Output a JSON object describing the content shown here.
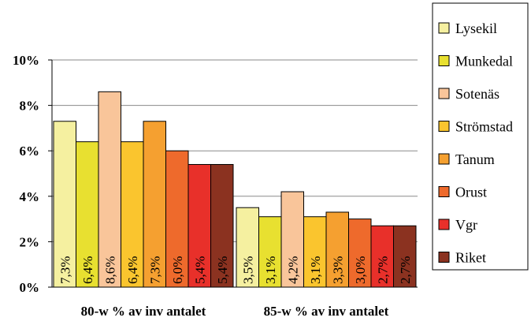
{
  "chart_data": {
    "type": "bar",
    "categories": [
      "80-w % av inv antalet",
      "85-w % av inv antalet"
    ],
    "series": [
      {
        "name": "Lysekil",
        "color": "#F5F0A0",
        "values": [
          7.3,
          3.5
        ],
        "labels": [
          "7,3%",
          "3,5%"
        ]
      },
      {
        "name": "Munkedal",
        "color": "#E8E030",
        "values": [
          6.4,
          3.1
        ],
        "labels": [
          "6,4%",
          "3,1%"
        ]
      },
      {
        "name": "Sotenäs",
        "color": "#F9C59A",
        "values": [
          8.6,
          4.2
        ],
        "labels": [
          "8,6%",
          "4,2%"
        ]
      },
      {
        "name": "Strömstad",
        "color": "#FAC52E",
        "values": [
          6.4,
          3.1
        ],
        "labels": [
          "6,4%",
          "3,1%"
        ]
      },
      {
        "name": "Tanum",
        "color": "#F5A030",
        "values": [
          7.3,
          3.3
        ],
        "labels": [
          "7,3%",
          "3,3%"
        ]
      },
      {
        "name": "Orust",
        "color": "#EE6A2C",
        "values": [
          6.0,
          3.0
        ],
        "labels": [
          "6,0%",
          "3,0%"
        ]
      },
      {
        "name": "Vgr",
        "color": "#E8302A",
        "values": [
          5.4,
          2.7
        ],
        "labels": [
          "5,4%",
          "2,7%"
        ]
      },
      {
        "name": "Riket",
        "color": "#8B3220",
        "values": [
          5.4,
          2.7
        ],
        "labels": [
          "5,4%",
          "2,7%"
        ]
      }
    ],
    "y_ticks": [
      0,
      2,
      4,
      6,
      8,
      10
    ],
    "y_tick_labels": [
      "0%",
      "2%",
      "4%",
      "6%",
      "8%",
      "10%"
    ],
    "ylim": [
      0,
      10
    ],
    "grid": true,
    "legend_position": "right"
  }
}
